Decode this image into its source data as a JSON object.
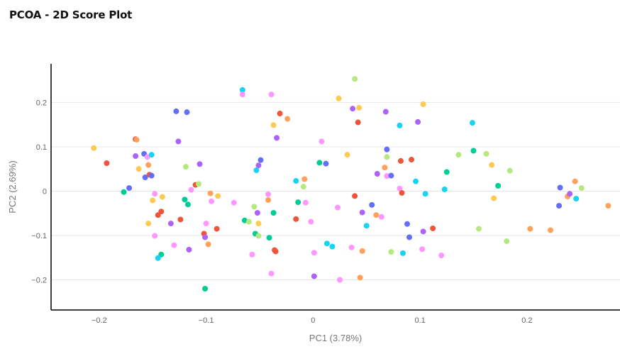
{
  "header": {
    "title": "PCOA - 2D Score Plot"
  },
  "chart_data": {
    "type": "scatter",
    "title": "PCOA - 2D Score Plot",
    "xlabel": "PC1 (3.78%)",
    "ylabel": "PC2 (2.69%)",
    "xlim": [
      -0.245,
      0.287
    ],
    "ylim": [
      -0.268,
      0.287
    ],
    "x_ticks": [
      -0.2,
      -0.1,
      0,
      0.1,
      0.2
    ],
    "y_ticks": [
      -0.2,
      -0.1,
      0,
      0.1,
      0.2
    ],
    "x_tick_labels": [
      "−0.2",
      "−0.1",
      "0",
      "0.1",
      "0.2"
    ],
    "y_tick_labels": [
      "−0.2",
      "−0.1",
      "0",
      "0.1",
      "0.2"
    ],
    "grid": "horizontal",
    "legend": "none",
    "point_colors": [
      "#636efa",
      "#ef553b",
      "#00cc96",
      "#ab63fa",
      "#ffa15a",
      "#19d3f3",
      "#ff6692",
      "#b6e880",
      "#ff97ff",
      "#fecb52"
    ],
    "points": [
      [
        -0.205,
        0.097,
        9
      ],
      [
        -0.193,
        0.063,
        1
      ],
      [
        -0.177,
        -0.002,
        2
      ],
      [
        -0.172,
        0.007,
        0
      ],
      [
        -0.166,
        0.117,
        1
      ],
      [
        -0.165,
        0.116,
        4
      ],
      [
        -0.166,
        0.079,
        3
      ],
      [
        -0.163,
        0.05,
        9
      ],
      [
        -0.158,
        0.084,
        0
      ],
      [
        -0.157,
        0.031,
        0
      ],
      [
        -0.155,
        0.077,
        8
      ],
      [
        -0.154,
        0.059,
        4
      ],
      [
        -0.153,
        0.037,
        1
      ],
      [
        -0.151,
        0.082,
        5
      ],
      [
        -0.151,
        0.035,
        0
      ],
      [
        -0.154,
        -0.073,
        9
      ],
      [
        -0.15,
        -0.021,
        9
      ],
      [
        -0.148,
        -0.006,
        8
      ],
      [
        -0.148,
        -0.101,
        8
      ],
      [
        -0.145,
        -0.054,
        1
      ],
      [
        -0.142,
        -0.046,
        1
      ],
      [
        -0.141,
        -0.013,
        9
      ],
      [
        -0.142,
        -0.143,
        2
      ],
      [
        -0.145,
        -0.151,
        5
      ],
      [
        -0.133,
        -0.073,
        3
      ],
      [
        -0.13,
        -0.122,
        8
      ],
      [
        -0.128,
        0.18,
        0
      ],
      [
        -0.126,
        0.112,
        3
      ],
      [
        -0.124,
        -0.064,
        1
      ],
      [
        -0.12,
        -0.019,
        2
      ],
      [
        -0.119,
        0.055,
        7
      ],
      [
        -0.118,
        0.178,
        0
      ],
      [
        -0.117,
        -0.03,
        2
      ],
      [
        -0.116,
        -0.132,
        3
      ],
      [
        -0.114,
        0.003,
        8
      ],
      [
        -0.11,
        0.014,
        1
      ],
      [
        -0.107,
        0.016,
        7
      ],
      [
        -0.106,
        0.061,
        3
      ],
      [
        -0.102,
        -0.096,
        1
      ],
      [
        -0.101,
        -0.104,
        3
      ],
      [
        -0.1,
        -0.073,
        8
      ],
      [
        -0.101,
        -0.22,
        2
      ],
      [
        -0.098,
        -0.12,
        4
      ],
      [
        -0.096,
        -0.005,
        4
      ],
      [
        -0.095,
        -0.023,
        8
      ],
      [
        -0.09,
        -0.085,
        1
      ],
      [
        -0.089,
        -0.011,
        9
      ],
      [
        -0.074,
        -0.026,
        8
      ],
      [
        -0.066,
        0.228,
        5
      ],
      [
        -0.066,
        0.218,
        8
      ],
      [
        -0.064,
        -0.066,
        2
      ],
      [
        -0.06,
        -0.069,
        7
      ],
      [
        -0.057,
        -0.143,
        8
      ],
      [
        -0.055,
        -0.035,
        7
      ],
      [
        -0.054,
        -0.096,
        2
      ],
      [
        -0.053,
        0.047,
        5
      ],
      [
        -0.052,
        -0.049,
        3
      ],
      [
        -0.051,
        -0.101,
        7
      ],
      [
        -0.051,
        0.058,
        3
      ],
      [
        -0.049,
        0.07,
        0
      ],
      [
        -0.051,
        -0.073,
        9
      ],
      [
        -0.042,
        -0.02,
        4
      ],
      [
        -0.042,
        -0.007,
        8
      ],
      [
        -0.041,
        -0.105,
        2
      ],
      [
        -0.039,
        0.218,
        8
      ],
      [
        -0.039,
        -0.186,
        8
      ],
      [
        -0.037,
        0.149,
        9
      ],
      [
        -0.037,
        -0.049,
        2
      ],
      [
        -0.036,
        -0.133,
        1
      ],
      [
        -0.035,
        -0.136,
        1
      ],
      [
        -0.034,
        0.12,
        3
      ],
      [
        -0.031,
        0.175,
        1
      ],
      [
        -0.024,
        0.163,
        4
      ],
      [
        -0.016,
        -0.063,
        1
      ],
      [
        -0.016,
        0.023,
        5
      ],
      [
        -0.014,
        -0.025,
        2
      ],
      [
        -0.009,
        0.01,
        7
      ],
      [
        -0.008,
        0.027,
        4
      ],
      [
        -0.007,
        -0.026,
        8
      ],
      [
        -0.002,
        -0.069,
        8
      ],
      [
        0.001,
        -0.192,
        3
      ],
      [
        0.001,
        -0.139,
        8
      ],
      [
        0.006,
        0.064,
        2
      ],
      [
        0.008,
        0.112,
        8
      ],
      [
        0.012,
        0.062,
        0
      ],
      [
        0.013,
        -0.118,
        5
      ],
      [
        0.018,
        -0.125,
        5
      ],
      [
        0.023,
        -0.037,
        8
      ],
      [
        0.024,
        0.209,
        9
      ],
      [
        0.025,
        -0.2,
        8
      ],
      [
        0.032,
        0.082,
        9
      ],
      [
        0.036,
        -0.127,
        8
      ],
      [
        0.037,
        0.186,
        3
      ],
      [
        0.039,
        0.253,
        7
      ],
      [
        0.039,
        -0.011,
        1
      ],
      [
        0.042,
        0.155,
        1
      ],
      [
        0.043,
        0.188,
        9
      ],
      [
        0.044,
        -0.195,
        4
      ],
      [
        0.046,
        -0.135,
        4
      ],
      [
        0.046,
        -0.048,
        3
      ],
      [
        0.05,
        -0.078,
        5
      ],
      [
        0.055,
        -0.031,
        0
      ],
      [
        0.059,
        -0.054,
        4
      ],
      [
        0.06,
        0.039,
        3
      ],
      [
        0.064,
        -0.058,
        8
      ],
      [
        0.067,
        0.053,
        4
      ],
      [
        0.068,
        0.179,
        3
      ],
      [
        0.069,
        0.077,
        7
      ],
      [
        0.069,
        0.094,
        0
      ],
      [
        0.069,
        0.034,
        8
      ],
      [
        0.073,
        0.035,
        0
      ],
      [
        0.073,
        -0.137,
        7
      ],
      [
        0.081,
        0.148,
        5
      ],
      [
        0.081,
        0.006,
        8
      ],
      [
        0.082,
        0.068,
        1
      ],
      [
        0.083,
        -0.004,
        1
      ],
      [
        0.084,
        -0.14,
        5
      ],
      [
        0.088,
        -0.074,
        0
      ],
      [
        0.09,
        -0.104,
        0
      ],
      [
        0.092,
        0.071,
        1
      ],
      [
        0.096,
        0.022,
        5
      ],
      [
        0.098,
        0.156,
        3
      ],
      [
        0.102,
        -0.131,
        8
      ],
      [
        0.103,
        0.196,
        9
      ],
      [
        0.103,
        -0.091,
        3
      ],
      [
        0.105,
        -0.006,
        5
      ],
      [
        0.112,
        -0.084,
        1
      ],
      [
        0.12,
        -0.145,
        8
      ],
      [
        0.123,
        0.004,
        5
      ],
      [
        0.125,
        0.043,
        2
      ],
      [
        0.136,
        0.082,
        7
      ],
      [
        0.149,
        0.154,
        5
      ],
      [
        0.15,
        0.091,
        2
      ],
      [
        0.155,
        -0.085,
        7
      ],
      [
        0.162,
        0.084,
        7
      ],
      [
        0.167,
        0.059,
        9
      ],
      [
        0.169,
        -0.016,
        9
      ],
      [
        0.173,
        0.012,
        2
      ],
      [
        0.181,
        -0.113,
        7
      ],
      [
        0.184,
        0.046,
        7
      ],
      [
        0.203,
        -0.085,
        4
      ],
      [
        0.222,
        -0.088,
        4
      ],
      [
        0.23,
        -0.033,
        0
      ],
      [
        0.231,
        0.008,
        0
      ],
      [
        0.238,
        -0.012,
        4
      ],
      [
        0.24,
        -0.006,
        3
      ],
      [
        0.245,
        0.022,
        4
      ],
      [
        0.246,
        -0.017,
        5
      ],
      [
        0.251,
        0.007,
        7
      ],
      [
        0.276,
        -0.033,
        4
      ]
    ]
  }
}
